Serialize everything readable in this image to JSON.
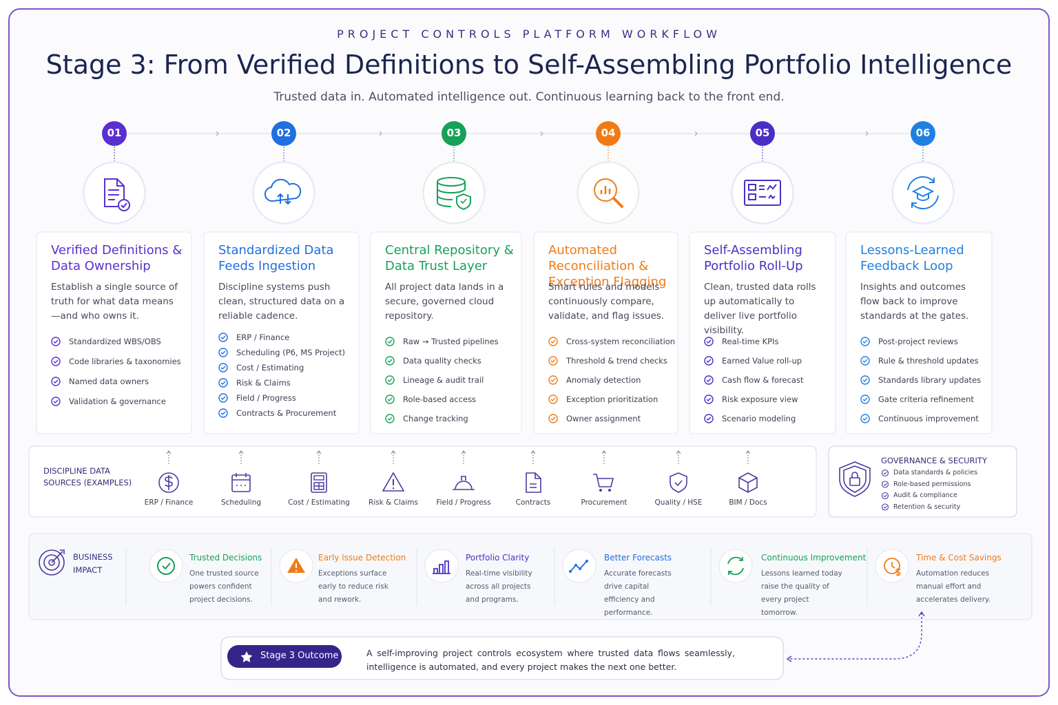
{
  "header": {
    "eyebrow": "PROJECT CONTROLS PLATFORM WORKFLOW",
    "title": "Stage 3: From Verified Definitions to Self-Assembling Portfolio Intelligence",
    "subtitle": "Trusted data in. Automated intelligence out. Continuous learning back to the front end."
  },
  "stages": [
    {
      "number": "01",
      "title": "Verified Definitions & Data Ownership",
      "description": "Establish a single source of truth for what data means—and who owns it.",
      "items": [
        "Standardized WBS/OBS",
        "Code libraries & taxonomies",
        "Named data owners",
        "Validation & governance"
      ]
    },
    {
      "number": "02",
      "title": "Standardized Data Feeds Ingestion",
      "description": "Discipline systems push clean, structured data on a reliable cadence.",
      "items": [
        "ERP / Finance",
        "Scheduling (P6, MS Project)",
        "Cost / Estimating",
        "Risk & Claims",
        "Field / Progress",
        "Contracts & Procurement"
      ]
    },
    {
      "number": "03",
      "title": "Central Repository & Data Trust Layer",
      "description": "All project data lands in a secure, governed cloud repository.",
      "items": [
        "Raw → Trusted pipelines",
        "Data quality checks",
        "Lineage & audit trail",
        "Role-based access",
        "Change tracking"
      ]
    },
    {
      "number": "04",
      "title": "Automated Reconciliation & Exception Flagging",
      "description": "Smart rules and models continuously compare, validate, and flag issues.",
      "items": [
        "Cross-system reconciliation",
        "Threshold & trend checks",
        "Anomaly detection",
        "Exception prioritization",
        "Owner assignment"
      ]
    },
    {
      "number": "05",
      "title": "Self-Assembling Portfolio Roll-Up",
      "description": "Clean, trusted data rolls up automatically to deliver live portfolio visibility.",
      "items": [
        "Real-time KPIs",
        "Earned Value roll-up",
        "Cash flow & forecast",
        "Risk exposure view",
        "Scenario modeling"
      ]
    },
    {
      "number": "06",
      "title": "Lessons-Learned Feedback Loop",
      "description": "Insights and outcomes flow back to improve standards at the gates.",
      "items": [
        "Post-project reviews",
        "Rule & threshold updates",
        "Standards library updates",
        "Gate criteria refinement",
        "Continuous improvement"
      ]
    }
  ],
  "sources": {
    "label": "DISCIPLINE DATA SOURCES (EXAMPLES)",
    "items": [
      "ERP / Finance",
      "Scheduling",
      "Cost / Estimating",
      "Risk & Claims",
      "Field / Progress",
      "Contracts",
      "Procurement",
      "Quality / HSE",
      "BIM / Docs"
    ]
  },
  "governance": {
    "title": "GOVERNANCE & SECURITY",
    "items": [
      "Data standards & policies",
      "Role-based permissions",
      "Audit & compliance",
      "Retention & security"
    ]
  },
  "impact": {
    "label": "BUSINESS IMPACT",
    "items": [
      {
        "title": "Trusted Decisions",
        "text": "One trusted source powers confident project decisions."
      },
      {
        "title": "Early Issue Detection",
        "text": "Exceptions surface early to reduce risk and rework."
      },
      {
        "title": "Portfolio Clarity",
        "text": "Real-time visibility across all projects and programs."
      },
      {
        "title": "Better Forecasts",
        "text": "Accurate forecasts drive capital efficiency and performance."
      },
      {
        "title": "Continuous Improvement",
        "text": "Lessons learned today raise the quality of every project tomorrow."
      },
      {
        "title": "Time & Cost Savings",
        "text": "Automation reduces manual effort and accelerates delivery."
      }
    ]
  },
  "outcome": {
    "badge": "Stage 3 Outcome",
    "text": "A self-improving project controls ecosystem where trusted data flows seamlessly, intelligence is automated, and every project makes the next one better."
  }
}
